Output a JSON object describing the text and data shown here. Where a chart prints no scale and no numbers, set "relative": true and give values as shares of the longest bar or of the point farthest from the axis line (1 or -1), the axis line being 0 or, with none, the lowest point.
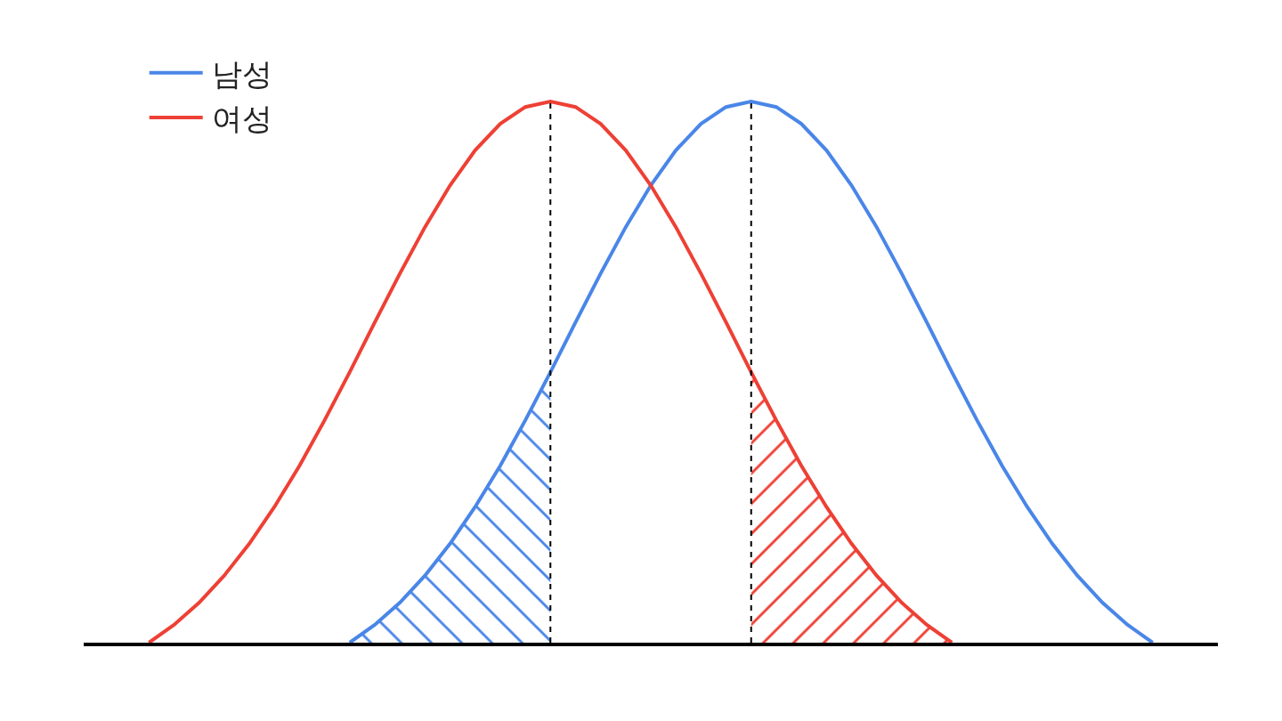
{
  "chart_data": {
    "type": "line",
    "relative": true,
    "legend": "top left",
    "marker": "none",
    "line_style": "solid",
    "categories": [
      null,
      null,
      null,
      null,
      null,
      null,
      null,
      null,
      null,
      null,
      null,
      null,
      null,
      null,
      null,
      null,
      null,
      null,
      null,
      null,
      null,
      null,
      null,
      null,
      null,
      null,
      null,
      null,
      null,
      null,
      null,
      null,
      null,
      null,
      null,
      null,
      null,
      null,
      null,
      null,
      null
    ],
    "series": [
      {
        "name": "남성",
        "color": "#4a86e8",
        "values": [
          null,
          null,
          null,
          null,
          null,
          null,
          null,
          null,
          0.0,
          0.033,
          0.074,
          0.124,
          0.183,
          0.251,
          0.327,
          0.411,
          0.5,
          0.592,
          0.682,
          0.768,
          0.845,
          0.91,
          0.959,
          0.99,
          1.0,
          0.99,
          0.959,
          0.91,
          0.845,
          0.768,
          0.682,
          0.592,
          0.5,
          0.411,
          0.327,
          0.251,
          0.183,
          0.124,
          0.074,
          0.033,
          0.0
        ]
      },
      {
        "name": "여성",
        "color": "#ee4035",
        "values": [
          0.0,
          0.033,
          0.074,
          0.124,
          0.183,
          0.251,
          0.327,
          0.411,
          0.5,
          0.592,
          0.682,
          0.768,
          0.845,
          0.91,
          0.959,
          0.99,
          1.0,
          0.99,
          0.959,
          0.91,
          0.845,
          0.768,
          0.682,
          0.592,
          0.5,
          0.411,
          0.327,
          0.251,
          0.183,
          0.124,
          0.074,
          0.033,
          0.0,
          null,
          null,
          null,
          null,
          null,
          null,
          null,
          null
        ]
      }
    ]
  }
}
